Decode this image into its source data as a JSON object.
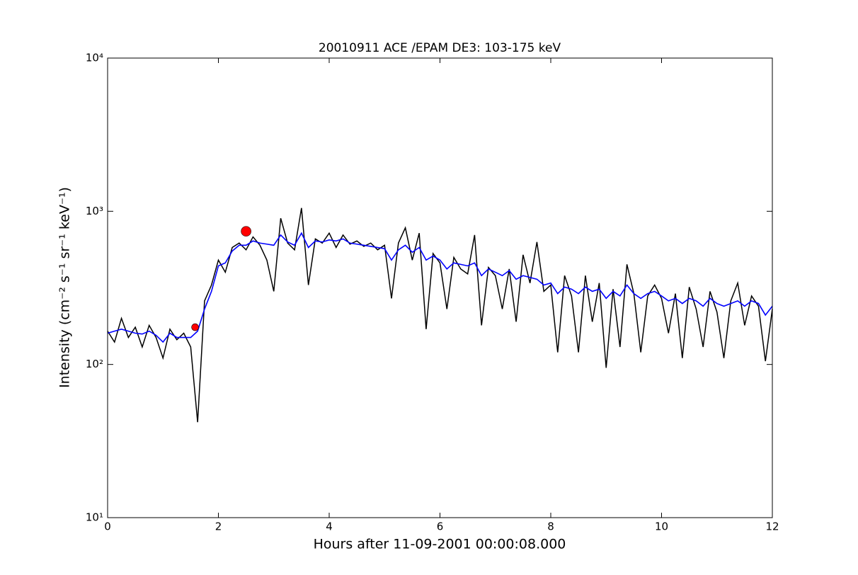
{
  "chart_data": {
    "type": "line",
    "title": "20010911 ACE /EPAM DE3: 103-175 keV",
    "xlabel": "Hours after 11-09-2001 00:00:08.000",
    "ylabel": "Intensity (cm⁻² s⁻¹ sr⁻¹ keV⁻¹)",
    "x": [
      0,
      0.125,
      0.25,
      0.375,
      0.5,
      0.625,
      0.75,
      0.875,
      1,
      1.125,
      1.25,
      1.375,
      1.5,
      1.625,
      1.75,
      1.875,
      2,
      2.125,
      2.25,
      2.375,
      2.5,
      2.625,
      2.75,
      2.875,
      3,
      3.125,
      3.25,
      3.375,
      3.5,
      3.625,
      3.75,
      3.875,
      4,
      4.125,
      4.25,
      4.375,
      4.5,
      4.625,
      4.75,
      4.875,
      5,
      5.125,
      5.25,
      5.375,
      5.5,
      5.625,
      5.75,
      5.875,
      6,
      6.125,
      6.25,
      6.375,
      6.5,
      6.625,
      6.75,
      6.875,
      7,
      7.125,
      7.25,
      7.375,
      7.5,
      7.625,
      7.75,
      7.875,
      8,
      8.125,
      8.25,
      8.375,
      8.5,
      8.625,
      8.75,
      8.875,
      9,
      9.125,
      9.25,
      9.375,
      9.5,
      9.625,
      9.75,
      9.875,
      10,
      10.125,
      10.25,
      10.375,
      10.5,
      10.625,
      10.75,
      10.875,
      11,
      11.125,
      11.25,
      11.375,
      11.5,
      11.625,
      11.75,
      11.875,
      12
    ],
    "series": [
      {
        "color": "#000000",
        "values": [
          165,
          140,
          200,
          150,
          175,
          130,
          180,
          150,
          110,
          170,
          145,
          160,
          130,
          42,
          260,
          330,
          480,
          400,
          580,
          620,
          560,
          680,
          600,
          480,
          300,
          900,
          620,
          560,
          1050,
          330,
          660,
          620,
          720,
          580,
          700,
          610,
          640,
          590,
          620,
          560,
          600,
          270,
          620,
          780,
          480,
          720,
          170,
          530,
          460,
          230,
          500,
          420,
          390,
          700,
          180,
          430,
          380,
          230,
          420,
          190,
          520,
          340,
          630,
          300,
          330,
          120,
          380,
          280,
          120,
          380,
          190,
          340,
          95,
          310,
          130,
          450,
          290,
          120,
          280,
          330,
          270,
          160,
          290,
          110,
          320,
          230,
          130,
          300,
          220,
          110,
          260,
          340,
          180,
          280,
          240,
          105,
          230
        ]
      },
      {
        "color": "#0000ff",
        "values": [
          160,
          165,
          170,
          165,
          160,
          158,
          165,
          155,
          140,
          160,
          150,
          150,
          150,
          165,
          230,
          300,
          440,
          460,
          550,
          600,
          600,
          640,
          620,
          610,
          600,
          700,
          630,
          600,
          720,
          580,
          640,
          630,
          650,
          640,
          660,
          620,
          610,
          600,
          590,
          580,
          570,
          480,
          560,
          600,
          540,
          580,
          480,
          510,
          480,
          420,
          460,
          450,
          440,
          460,
          380,
          420,
          400,
          380,
          410,
          360,
          380,
          370,
          360,
          330,
          340,
          290,
          320,
          310,
          290,
          320,
          300,
          310,
          270,
          300,
          280,
          330,
          290,
          270,
          290,
          300,
          280,
          260,
          270,
          250,
          270,
          260,
          240,
          270,
          250,
          240,
          250,
          260,
          240,
          260,
          250,
          210,
          240
        ]
      }
    ],
    "points": {
      "x": [
        1.58,
        2.5
      ],
      "values": [
        175,
        740
      ],
      "color": "#ff0000"
    },
    "xlim": [
      0,
      12
    ],
    "xticks": [
      0,
      2,
      4,
      6,
      8,
      10,
      12
    ],
    "ylim": [
      10,
      10000
    ],
    "log_y": true,
    "yticks": [
      {
        "value": 10,
        "label": "10¹"
      },
      {
        "value": 100,
        "label": "10²"
      },
      {
        "value": 1000,
        "label": "10³"
      },
      {
        "value": 10000,
        "label": "10⁴"
      }
    ]
  }
}
